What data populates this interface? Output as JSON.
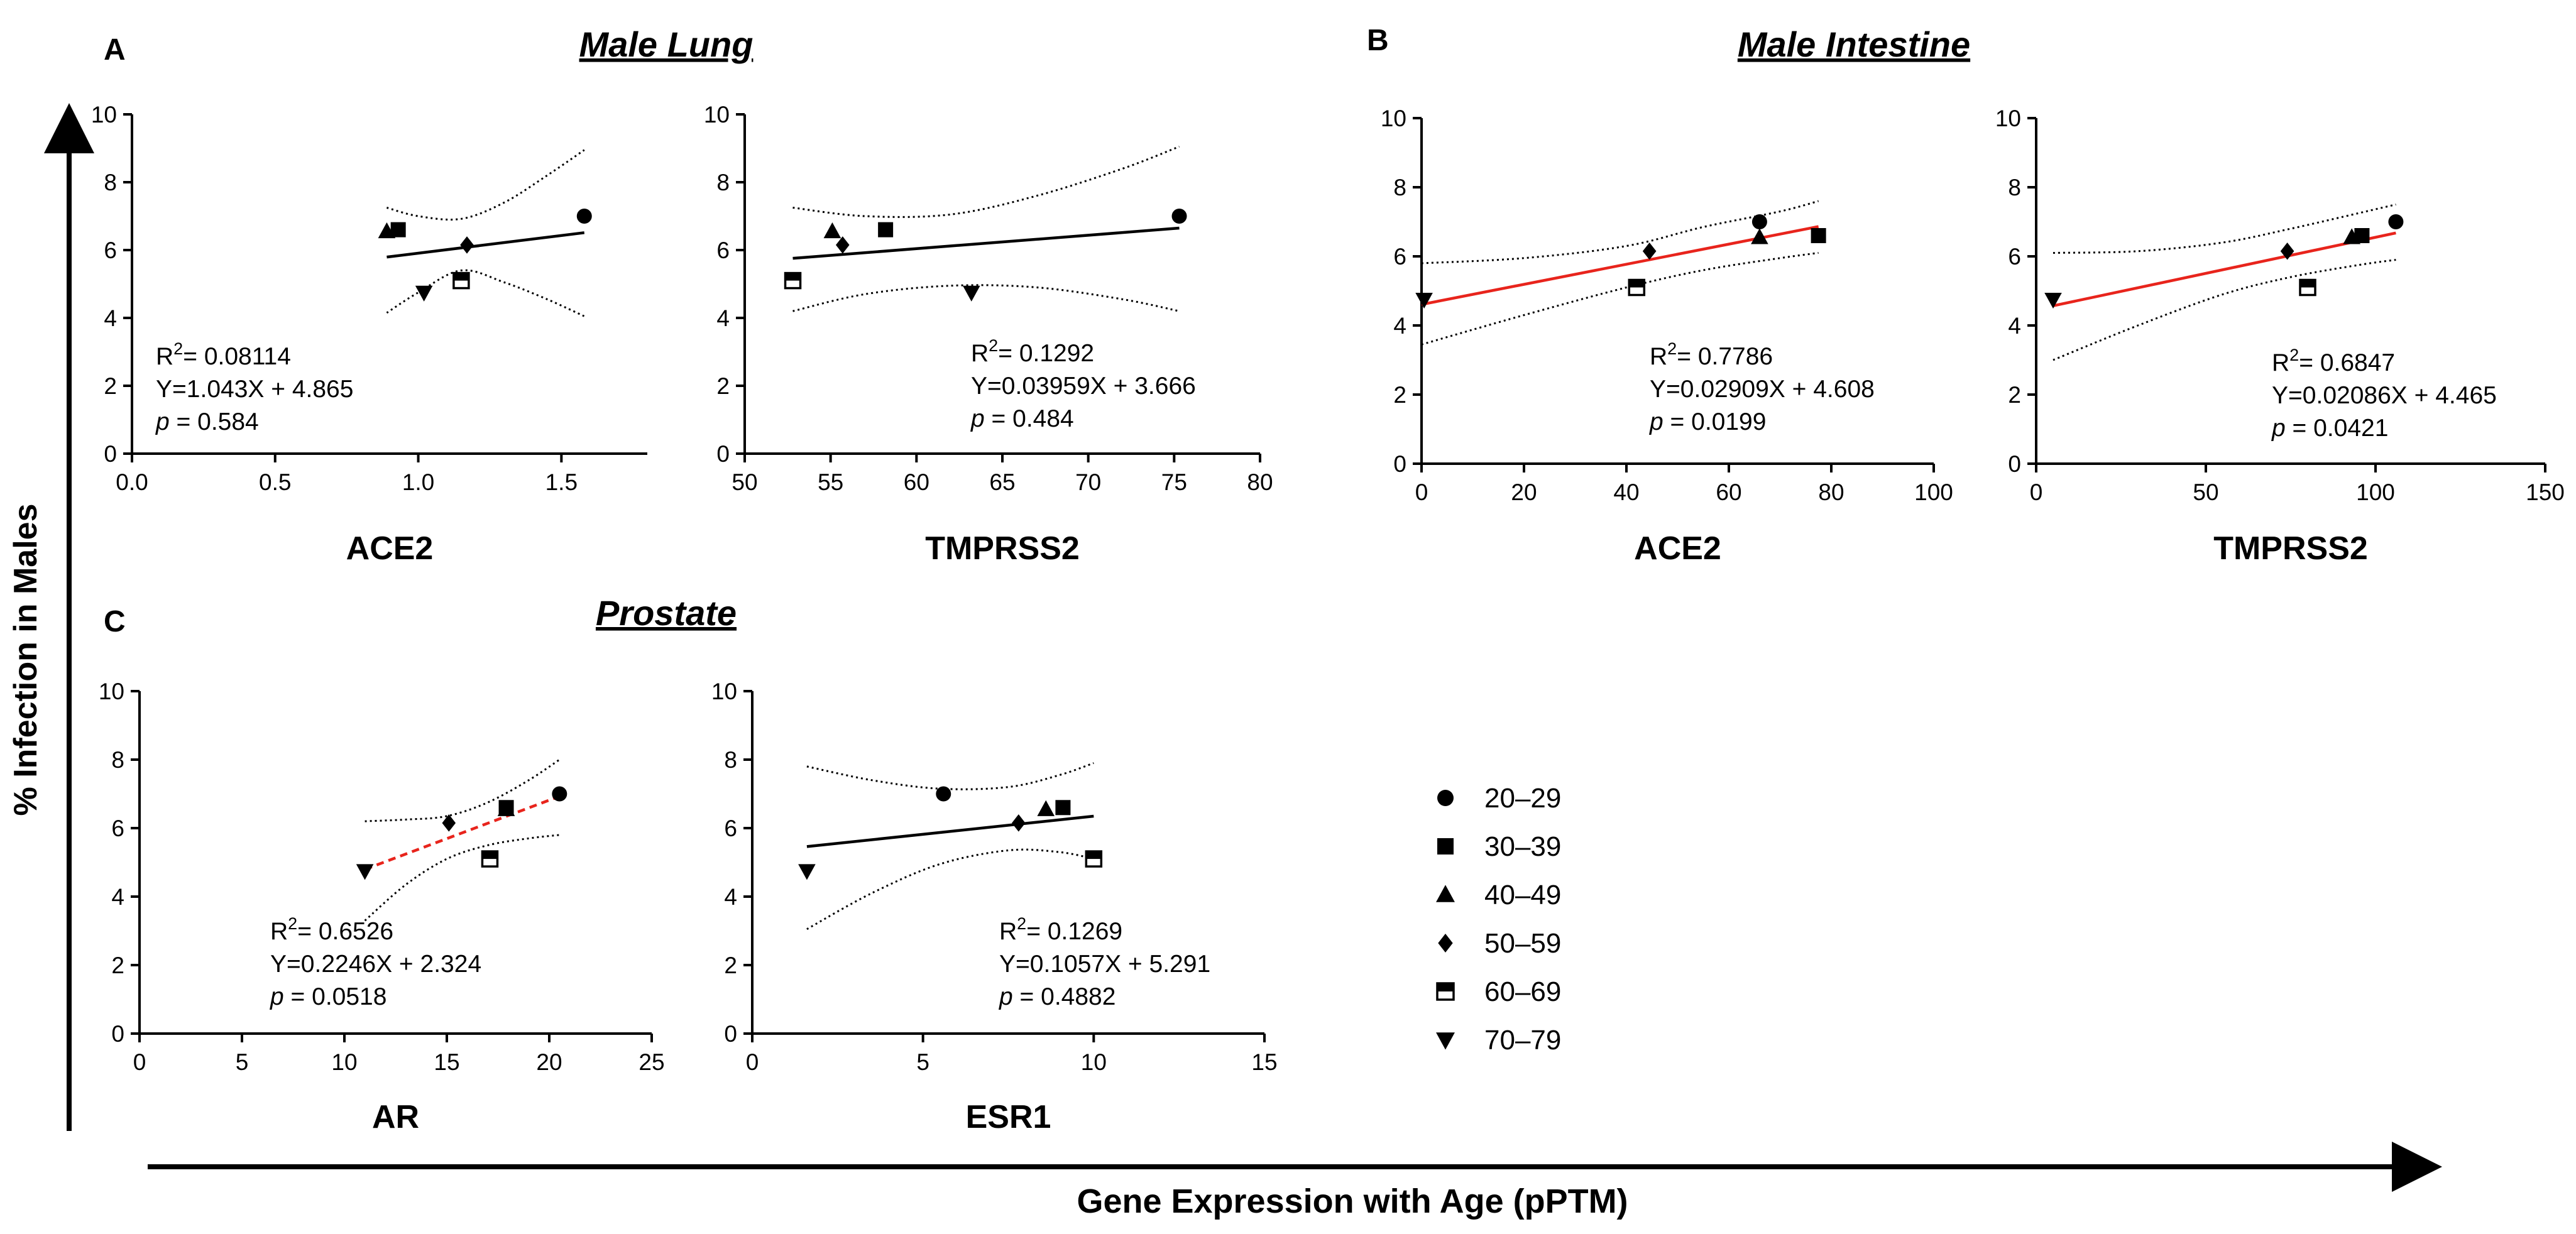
{
  "panels": {
    "A": {
      "letter": "A",
      "title": "Male Lung"
    },
    "B": {
      "letter": "B",
      "title": "Male Intestine"
    },
    "C": {
      "letter": "C",
      "title": "Prostate"
    }
  },
  "global": {
    "ylabel": "% Infection in Males",
    "xlabel": "Gene Expression with Age (pPTM)"
  },
  "legend": {
    "items": [
      {
        "label": "20–29",
        "marker": "circle"
      },
      {
        "label": "30–39",
        "marker": "square"
      },
      {
        "label": "40–49",
        "marker": "triangle-up"
      },
      {
        "label": "50–59",
        "marker": "diamond"
      },
      {
        "label": "60–69",
        "marker": "half-square"
      },
      {
        "label": "70–79",
        "marker": "triangle-down"
      }
    ]
  },
  "chart_data": [
    {
      "id": "lung-ace2",
      "panel": "A",
      "type": "scatter",
      "xlabel": "ACE2",
      "xlim": [
        0,
        1.8
      ],
      "xticks": [
        "0.0",
        "0.5",
        "1.0",
        "1.5"
      ],
      "xtick_values": [
        0,
        0.5,
        1,
        1.5
      ],
      "ylim": [
        0,
        10
      ],
      "yticks": [
        "0",
        "2",
        "4",
        "6",
        "8",
        "10"
      ],
      "points": [
        {
          "group": "20–29",
          "x": 1.58,
          "y": 7.0
        },
        {
          "group": "30–39",
          "x": 0.93,
          "y": 6.6
        },
        {
          "group": "40–49",
          "x": 0.89,
          "y": 6.55
        },
        {
          "group": "50–59",
          "x": 1.17,
          "y": 6.15
        },
        {
          "group": "60–69",
          "x": 1.15,
          "y": 5.1
        },
        {
          "group": "70–79",
          "x": 1.02,
          "y": 4.75
        }
      ],
      "fit": {
        "x_range": [
          0.89,
          1.58
        ],
        "slope": 1.043,
        "intercept": 4.865,
        "color": "#000000",
        "dashed": false
      },
      "ci_upper": [
        [
          0.89,
          7.25
        ],
        [
          1.0,
          7.0
        ],
        [
          1.15,
          6.92
        ],
        [
          1.3,
          7.4
        ],
        [
          1.45,
          8.2
        ],
        [
          1.58,
          8.95
        ]
      ],
      "ci_lower": [
        [
          0.89,
          4.15
        ],
        [
          1.0,
          4.75
        ],
        [
          1.15,
          5.4
        ],
        [
          1.3,
          5.05
        ],
        [
          1.45,
          4.55
        ],
        [
          1.58,
          4.05
        ]
      ],
      "stats": {
        "r2_label": "R",
        "r2_sup": "2",
        "r2_value": "= 0.08114",
        "equation": "Y=1.043X  + 4.865",
        "p_label": "p",
        "p_value": " = 0.584"
      }
    },
    {
      "id": "lung-tmprss2",
      "panel": "A",
      "type": "scatter",
      "xlabel": "TMPRSS2",
      "xlim": [
        50,
        80
      ],
      "xticks": [
        "50",
        "55",
        "60",
        "65",
        "70",
        "75",
        "80"
      ],
      "xtick_values": [
        50,
        55,
        60,
        65,
        70,
        75,
        80
      ],
      "ylim": [
        0,
        10
      ],
      "yticks": [
        "0",
        "2",
        "4",
        "6",
        "8",
        "10"
      ],
      "points": [
        {
          "group": "20–29",
          "x": 75.3,
          "y": 7.0
        },
        {
          "group": "30–39",
          "x": 58.2,
          "y": 6.6
        },
        {
          "group": "40–49",
          "x": 55.1,
          "y": 6.55
        },
        {
          "group": "50–59",
          "x": 55.7,
          "y": 6.15
        },
        {
          "group": "60–69",
          "x": 52.8,
          "y": 5.1
        },
        {
          "group": "70–79",
          "x": 63.2,
          "y": 4.75
        }
      ],
      "fit": {
        "x_range": [
          52.8,
          75.3
        ],
        "slope": 0.03959,
        "intercept": 3.666,
        "color": "#000000",
        "dashed": false
      },
      "ci_upper": [
        [
          52.8,
          7.25
        ],
        [
          57,
          7.0
        ],
        [
          62,
          7.05
        ],
        [
          67,
          7.6
        ],
        [
          72,
          8.4
        ],
        [
          75.3,
          9.05
        ]
      ],
      "ci_lower": [
        [
          52.8,
          4.2
        ],
        [
          57,
          4.7
        ],
        [
          62,
          4.95
        ],
        [
          67,
          4.9
        ],
        [
          72,
          4.55
        ],
        [
          75.3,
          4.2
        ]
      ],
      "stats": {
        "r2_label": "R",
        "r2_sup": "2",
        "r2_value": "= 0.1292",
        "equation": "Y=0.03959X  + 3.666",
        "p_label": "p",
        "p_value": " = 0.484"
      }
    },
    {
      "id": "intestine-ace2",
      "panel": "B",
      "type": "scatter",
      "xlabel": "ACE2",
      "xlim": [
        0,
        100
      ],
      "xticks": [
        "0",
        "20",
        "40",
        "60",
        "80",
        "100"
      ],
      "xtick_values": [
        0,
        20,
        40,
        60,
        80,
        100
      ],
      "ylim": [
        0,
        10
      ],
      "yticks": [
        "0",
        "2",
        "4",
        "6",
        "8",
        "10"
      ],
      "points": [
        {
          "group": "20–29",
          "x": 66,
          "y": 7.0
        },
        {
          "group": "30–39",
          "x": 77.5,
          "y": 6.6
        },
        {
          "group": "40–49",
          "x": 66,
          "y": 6.55
        },
        {
          "group": "50–59",
          "x": 44.5,
          "y": 6.15
        },
        {
          "group": "60–69",
          "x": 42,
          "y": 5.1
        },
        {
          "group": "70–79",
          "x": 0.5,
          "y": 4.75
        }
      ],
      "fit": {
        "x_range": [
          0,
          77.5
        ],
        "slope": 0.02909,
        "intercept": 4.608,
        "color": "#e8241c",
        "dashed": false
      },
      "ci_upper": [
        [
          0,
          5.8
        ],
        [
          20,
          5.95
        ],
        [
          40,
          6.3
        ],
        [
          55,
          6.85
        ],
        [
          70,
          7.3
        ],
        [
          77.5,
          7.6
        ]
      ],
      "ci_lower": [
        [
          0,
          3.45
        ],
        [
          20,
          4.3
        ],
        [
          40,
          5.1
        ],
        [
          55,
          5.6
        ],
        [
          70,
          5.95
        ],
        [
          77.5,
          6.1
        ]
      ],
      "stats": {
        "r2_label": "R",
        "r2_sup": "2",
        "r2_value": "= 0.7786",
        "equation": "Y=0.02909X  + 4.608",
        "p_label": "p",
        "p_value": " = 0.0199"
      }
    },
    {
      "id": "intestine-tmprss2",
      "panel": "B",
      "type": "scatter",
      "xlabel": "TMPRSS2",
      "xlim": [
        0,
        150
      ],
      "xticks": [
        "0",
        "50",
        "100",
        "150"
      ],
      "xtick_values": [
        0,
        50,
        100,
        150
      ],
      "ylim": [
        0,
        10
      ],
      "yticks": [
        "0",
        "2",
        "4",
        "6",
        "8",
        "10"
      ],
      "points": [
        {
          "group": "20–29",
          "x": 106,
          "y": 7.0
        },
        {
          "group": "30–39",
          "x": 96,
          "y": 6.6
        },
        {
          "group": "40–49",
          "x": 93,
          "y": 6.55
        },
        {
          "group": "50–59",
          "x": 74,
          "y": 6.15
        },
        {
          "group": "60–69",
          "x": 80,
          "y": 5.1
        },
        {
          "group": "70–79",
          "x": 5,
          "y": 4.75
        }
      ],
      "fit": {
        "x_range": [
          5,
          106
        ],
        "slope": 0.02086,
        "intercept": 4.465,
        "color": "#e8241c",
        "dashed": false
      },
      "ci_upper": [
        [
          5,
          6.1
        ],
        [
          30,
          6.15
        ],
        [
          55,
          6.4
        ],
        [
          75,
          6.8
        ],
        [
          95,
          7.25
        ],
        [
          106,
          7.5
        ]
      ],
      "ci_lower": [
        [
          5,
          3.0
        ],
        [
          30,
          4.0
        ],
        [
          55,
          4.9
        ],
        [
          75,
          5.4
        ],
        [
          95,
          5.75
        ],
        [
          106,
          5.9
        ]
      ],
      "stats": {
        "r2_label": "R",
        "r2_sup": "2",
        "r2_value": "= 0.6847",
        "equation": "Y=0.02086X  + 4.465",
        "p_label": "p",
        "p_value": " = 0.0421"
      }
    },
    {
      "id": "prostate-ar",
      "panel": "C",
      "type": "scatter",
      "xlabel": "AR",
      "xlim": [
        0,
        25
      ],
      "xticks": [
        "0",
        "5",
        "10",
        "15",
        "20",
        "25"
      ],
      "xtick_values": [
        0,
        5,
        10,
        15,
        20,
        25
      ],
      "ylim": [
        0,
        10
      ],
      "yticks": [
        "0",
        "2",
        "4",
        "6",
        "8",
        "10"
      ],
      "points": [
        {
          "group": "20–29",
          "x": 20.5,
          "y": 7.0
        },
        {
          "group": "30–39",
          "x": 17.9,
          "y": 6.6
        },
        {
          "group": "40–49",
          "x": 17.9,
          "y": 6.55
        },
        {
          "group": "50–59",
          "x": 15.1,
          "y": 6.15
        },
        {
          "group": "60–69",
          "x": 17.1,
          "y": 5.1
        },
        {
          "group": "70–79",
          "x": 11.0,
          "y": 4.75
        }
      ],
      "fit": {
        "x_range": [
          11.0,
          20.5
        ],
        "slope": 0.2246,
        "intercept": 2.324,
        "color": "#e8241c",
        "dashed": true
      },
      "ci_upper": [
        [
          11,
          6.2
        ],
        [
          13,
          6.25
        ],
        [
          15,
          6.35
        ],
        [
          17,
          6.75
        ],
        [
          19,
          7.4
        ],
        [
          20.5,
          8.0
        ]
      ],
      "ci_lower": [
        [
          11,
          3.3
        ],
        [
          13,
          4.35
        ],
        [
          15,
          5.1
        ],
        [
          17,
          5.5
        ],
        [
          19,
          5.7
        ],
        [
          20.5,
          5.8
        ]
      ],
      "stats": {
        "r2_label": "R",
        "r2_sup": "2",
        "r2_value": "= 0.6526",
        "equation": "Y=0.2246X  + 2.324",
        "p_label": "p",
        "p_value": " = 0.0518"
      }
    },
    {
      "id": "prostate-esr1",
      "panel": "C",
      "type": "scatter",
      "xlabel": "ESR1",
      "xlim": [
        0,
        15
      ],
      "xticks": [
        "0",
        "5",
        "10",
        "15"
      ],
      "xtick_values": [
        0,
        5,
        10,
        15
      ],
      "ylim": [
        0,
        10
      ],
      "yticks": [
        "0",
        "2",
        "4",
        "6",
        "8",
        "10"
      ],
      "points": [
        {
          "group": "20–29",
          "x": 5.6,
          "y": 7.0
        },
        {
          "group": "30–39",
          "x": 9.1,
          "y": 6.6
        },
        {
          "group": "40–49",
          "x": 8.6,
          "y": 6.55
        },
        {
          "group": "50–59",
          "x": 7.8,
          "y": 6.15
        },
        {
          "group": "60–69",
          "x": 10.0,
          "y": 5.1
        },
        {
          "group": "70–79",
          "x": 1.6,
          "y": 4.75
        }
      ],
      "fit": {
        "x_range": [
          1.6,
          10.0
        ],
        "slope": 0.1057,
        "intercept": 5.291,
        "color": "#000000",
        "dashed": false
      },
      "ci_upper": [
        [
          1.6,
          7.8
        ],
        [
          3.5,
          7.4
        ],
        [
          5.5,
          7.15
        ],
        [
          7.5,
          7.2
        ],
        [
          9,
          7.55
        ],
        [
          10,
          7.9
        ]
      ],
      "ci_lower": [
        [
          1.6,
          3.05
        ],
        [
          3.5,
          4.1
        ],
        [
          5.5,
          4.95
        ],
        [
          7.5,
          5.35
        ],
        [
          9,
          5.3
        ],
        [
          10,
          5.1
        ]
      ],
      "stats": {
        "r2_label": "R",
        "r2_sup": "2",
        "r2_value": "= 0.1269",
        "equation": "Y=0.1057X  + 5.291",
        "p_label": "p",
        "p_value": " = 0.4882"
      }
    }
  ]
}
